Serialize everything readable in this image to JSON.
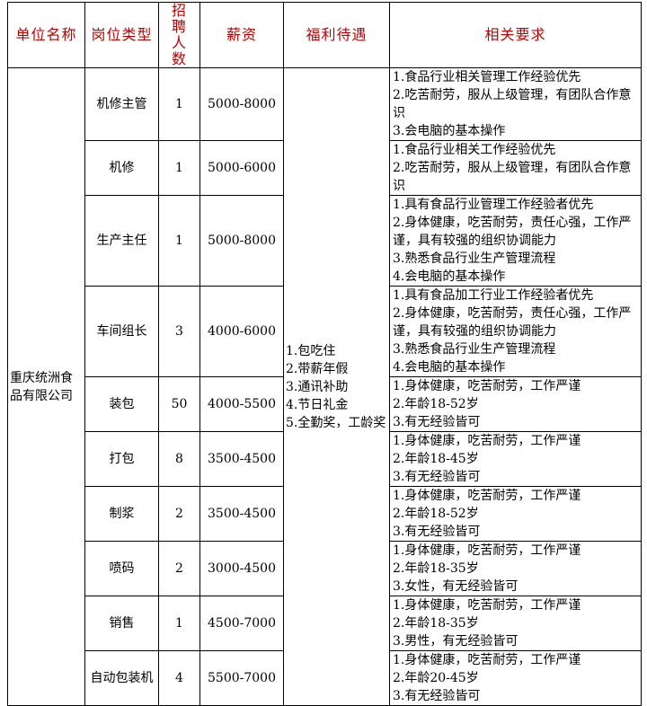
{
  "headers": [
    "单位名称",
    "岗位类型",
    "招聘人数",
    "薪资",
    "福利待遇",
    "相关要求"
  ],
  "company": "重庆统洲食品有限公司",
  "benefits": "1.包吃住\n2.带薪年假\n3.通讯补助\n4.节日礼金\n5.全勤奖，工龄奖",
  "accent_color": "#c00000",
  "rows": [
    {
      "position": "机修主管",
      "count": "1",
      "salary": "5000-8000",
      "requirements": "1.食品行业相关管理工作经验优先\n2.吃苦耐劳，服从上级管理，有团队合作意识\n3.会电脑的基本操作"
    },
    {
      "position": "机修",
      "count": "1",
      "salary": "5000-6000",
      "requirements": "1.食品行业相关工作经验优先\n2.吃苦耐劳，服从上级管理，有团队合作意识"
    },
    {
      "position": "生产主任",
      "count": "1",
      "salary": "5000-8000",
      "requirements": "1.具有食品行业管理工作经验者优先\n2.身体健康，吃苦耐劳，责任心强，工作严谨，具有较强的组织协调能力\n3.熟悉食品行业生产管理流程\n4.会电脑的基本操作"
    },
    {
      "position": "车间组长",
      "count": "3",
      "salary": "4000-6000",
      "requirements": "1.具有食品加工行业工作经验者优先\n2.身体健康，吃苦耐劳，责任心强，工作严谨，具有较强的组织协调能力\n3.熟悉食品行业生产管理流程\n4.会电脑的基本操作"
    },
    {
      "position": "装包",
      "count": "50",
      "salary": "4000-5500",
      "requirements": "1.身体健康，吃苦耐劳，工作严谨\n2.年龄18-52岁\n3.有无经验皆可"
    },
    {
      "position": "打包",
      "count": "8",
      "salary": "3500-4500",
      "requirements": "1.身体健康，吃苦耐劳，工作严谨\n2.年龄18-45岁\n3.有无经验皆可"
    },
    {
      "position": "制浆",
      "count": "2",
      "salary": "3500-4500",
      "requirements": "1.身体健康，吃苦耐劳，工作严谨\n2.年龄18-52岁\n3.有无经验皆可"
    },
    {
      "position": "喷码",
      "count": "2",
      "salary": "3000-4500",
      "requirements": "1.身体健康，吃苦耐劳，工作严谨\n2.年龄18-35岁\n3.女性，有无经验皆可"
    },
    {
      "position": "销售",
      "count": "1",
      "salary": "4500-7000",
      "requirements": "1.身体健康，吃苦耐劳，工作严谨\n2.年龄18-35岁\n3.男性，有无经验皆可"
    },
    {
      "position": "自动包装机",
      "count": "4",
      "salary": "5500-7000",
      "requirements": "1.身体健康，吃苦耐劳，工作严谨\n2.年龄20-45岁\n3.有无经验皆可"
    }
  ]
}
